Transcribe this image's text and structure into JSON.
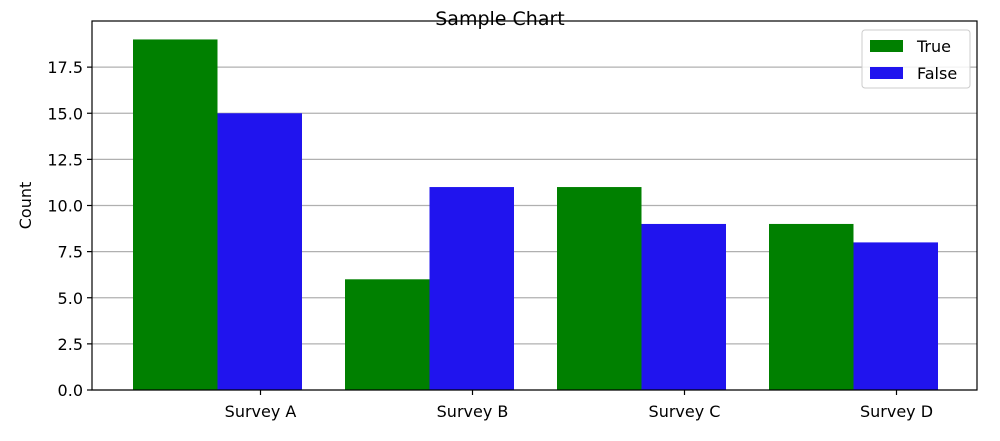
{
  "chart_data": {
    "type": "bar",
    "title": "Sample Chart",
    "xlabel": "",
    "ylabel": "Count",
    "categories": [
      "Survey A",
      "Survey B",
      "Survey C",
      "Survey D"
    ],
    "series": [
      {
        "name": "True",
        "color": "#008000",
        "values": [
          19,
          6,
          11,
          9
        ]
      },
      {
        "name": "False",
        "color": "#2014ee",
        "values": [
          15,
          11,
          9,
          8
        ]
      }
    ],
    "ylim": [
      0,
      20
    ],
    "yticks": [
      0.0,
      2.5,
      5.0,
      7.5,
      10.0,
      12.5,
      15.0,
      17.5
    ],
    "ytick_labels": [
      "0.0",
      "2.5",
      "5.0",
      "7.5",
      "10.0",
      "12.5",
      "15.0",
      "17.5"
    ],
    "grid": "y-major",
    "legend_position": "top-right"
  }
}
